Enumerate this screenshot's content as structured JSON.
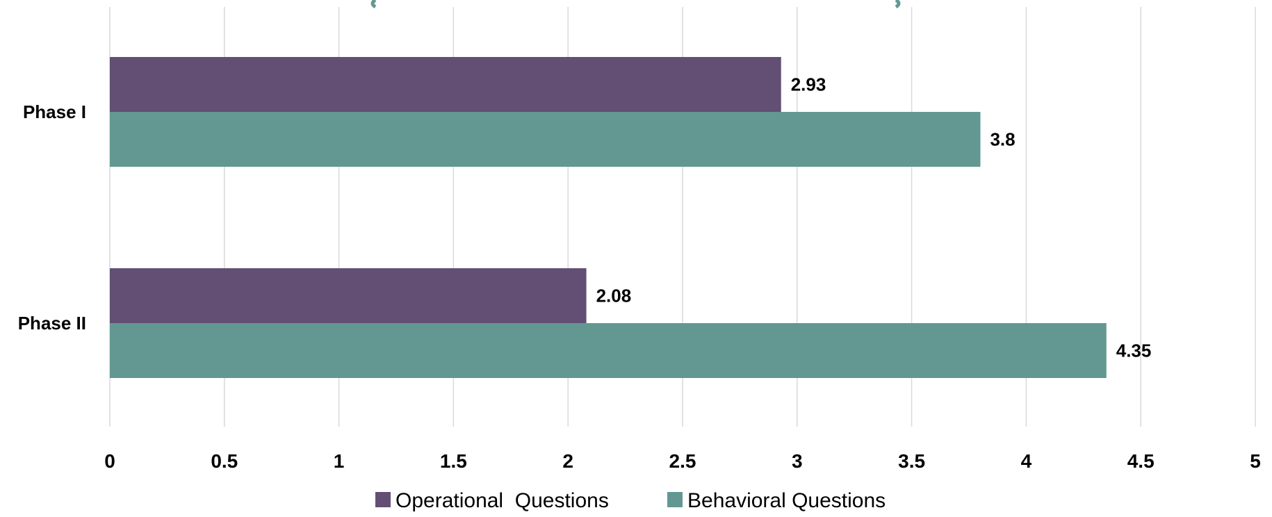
{
  "chart_data": {
    "type": "bar",
    "orientation": "horizontal",
    "categories": [
      "Phase I",
      "Phase II"
    ],
    "series": [
      {
        "name": "Operational  Questions",
        "color": "#634f74",
        "values": [
          2.93,
          2.08
        ],
        "labels": [
          "2.93",
          "2.08"
        ]
      },
      {
        "name": "Behavioral Questions",
        "color": "#629891",
        "values": [
          3.8,
          4.35
        ],
        "labels": [
          "3.8",
          "4.35"
        ]
      }
    ],
    "xlim": [
      0,
      5
    ],
    "xticks": [
      0,
      0.5,
      1,
      1.5,
      2,
      2.5,
      3,
      3.5,
      4,
      4.5,
      5
    ],
    "xtick_labels": [
      "0",
      "0.5",
      "1",
      "1.5",
      "2",
      "2.5",
      "3",
      "3.5",
      "4",
      "4.5",
      "5"
    ],
    "grid": "vertical",
    "legend_position": "bottom",
    "title_color": "#629891"
  }
}
